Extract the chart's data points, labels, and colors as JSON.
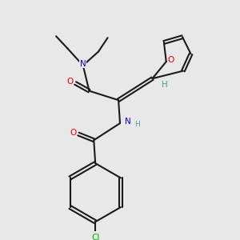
{
  "background_color": "#e8e8e8",
  "bond_color": "#1a1a1a",
  "bond_lw": 1.5,
  "colors": {
    "N": "#0000ee",
    "O": "#ee0000",
    "Cl": "#00aa00",
    "H_label": "#4a9999",
    "C": "#1a1a1a"
  },
  "font_size": 7.5,
  "font_size_small": 6.5
}
